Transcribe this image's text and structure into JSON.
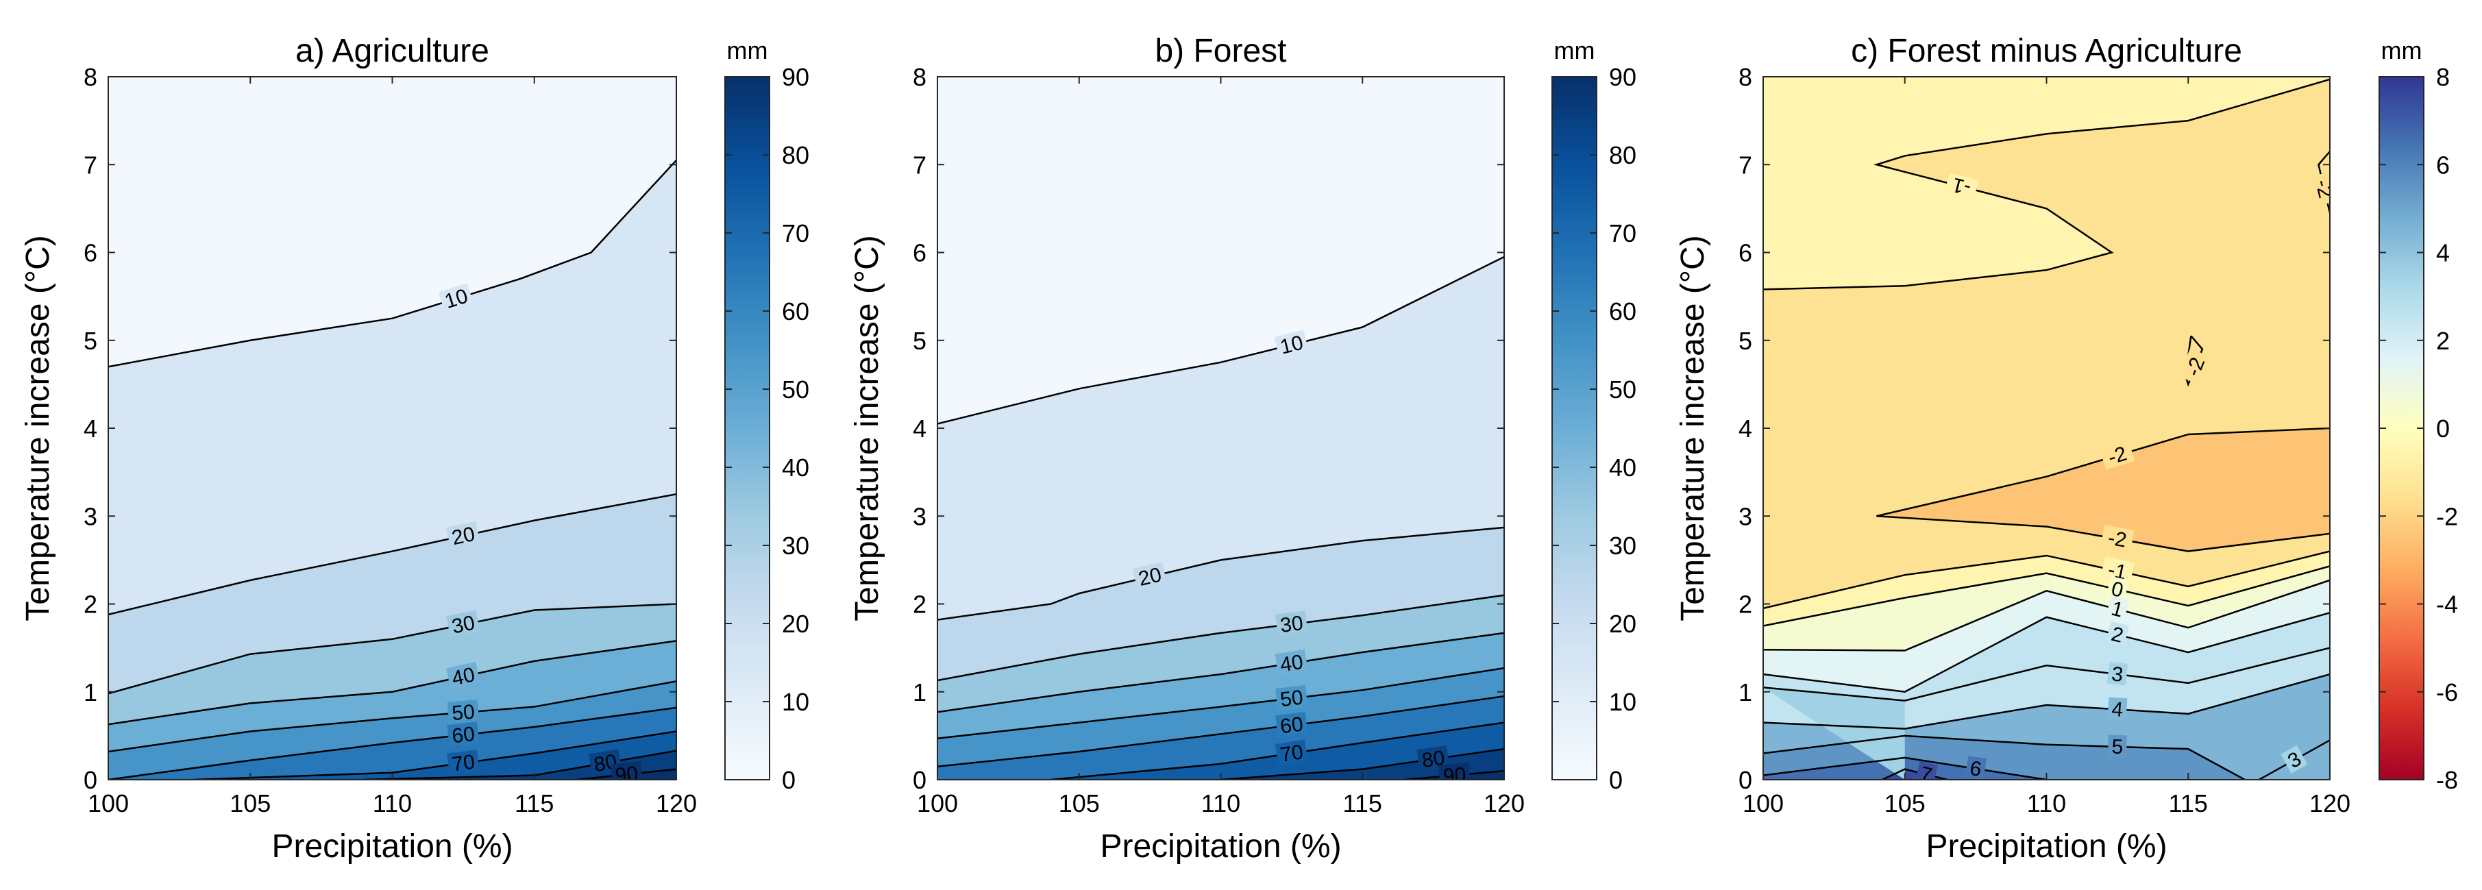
{
  "chart_data": [
    {
      "type": "contour",
      "panel": "a",
      "title": "a) Agriculture",
      "xlabel": "Precipitation (%)",
      "ylabel": "Temperature increase (°C)",
      "xlim": [
        100,
        120
      ],
      "ylim": [
        0,
        8
      ],
      "xticks": [
        100,
        105,
        110,
        115,
        120
      ],
      "yticks": [
        0,
        1,
        2,
        3,
        4,
        5,
        6,
        7,
        8
      ],
      "colormap": "Blues",
      "colorbar": {
        "label": "mm",
        "min": 0,
        "max": 90,
        "ticks": [
          0,
          10,
          20,
          30,
          40,
          50,
          60,
          70,
          80,
          90
        ]
      },
      "contours": [
        {
          "level": 10,
          "label": "10",
          "points": [
            [
              100,
              4.7
            ],
            [
              105,
              5.0
            ],
            [
              110,
              5.25
            ],
            [
              114.5,
              5.7
            ],
            [
              117,
              6.0
            ],
            [
              120,
              7.05
            ]
          ]
        },
        {
          "level": 20,
          "label": "20",
          "points": [
            [
              100,
              1.88
            ],
            [
              105,
              2.27
            ],
            [
              110,
              2.6
            ],
            [
              115,
              2.95
            ],
            [
              120,
              3.25
            ]
          ]
        },
        {
          "level": 30,
          "label": "30",
          "points": [
            [
              100,
              0.98
            ],
            [
              105,
              1.43
            ],
            [
              110,
              1.6
            ],
            [
              115,
              1.93
            ],
            [
              120,
              2.0
            ]
          ]
        },
        {
          "level": 40,
          "label": "40",
          "points": [
            [
              100,
              0.63
            ],
            [
              105,
              0.87
            ],
            [
              110,
              1.0
            ],
            [
              115,
              1.35
            ],
            [
              120,
              1.58
            ]
          ]
        },
        {
          "level": 50,
          "label": "50",
          "points": [
            [
              100,
              0.32
            ],
            [
              105,
              0.55
            ],
            [
              110,
              0.7
            ],
            [
              115,
              0.83
            ],
            [
              120,
              1.12
            ]
          ]
        },
        {
          "level": 60,
          "label": "60",
          "points": [
            [
              100,
              0.0
            ],
            [
              105,
              0.22
            ],
            [
              110,
              0.42
            ],
            [
              115,
              0.6
            ],
            [
              120,
              0.82
            ]
          ]
        },
        {
          "level": 70,
          "label": "70",
          "points": [
            [
              103,
              0.0
            ],
            [
              110,
              0.08
            ],
            [
              115,
              0.3
            ],
            [
              120,
              0.55
            ]
          ]
        },
        {
          "level": 80,
          "label": "80",
          "points": [
            [
              109,
              0.0
            ],
            [
              115,
              0.05
            ],
            [
              120,
              0.33
            ]
          ]
        },
        {
          "level": 90,
          "label": "90",
          "points": [
            [
              116.5,
              0.0
            ],
            [
              120,
              0.12
            ]
          ]
        }
      ]
    },
    {
      "type": "contour",
      "panel": "b",
      "title": "b) Forest",
      "xlabel": "Precipitation (%)",
      "ylabel": "Temperature increase (°C)",
      "xlim": [
        100,
        120
      ],
      "ylim": [
        0,
        8
      ],
      "xticks": [
        100,
        105,
        110,
        115,
        120
      ],
      "yticks": [
        0,
        1,
        2,
        3,
        4,
        5,
        6,
        7,
        8
      ],
      "colormap": "Blues",
      "colorbar": {
        "label": "mm",
        "min": 0,
        "max": 90,
        "ticks": [
          0,
          10,
          20,
          30,
          40,
          50,
          60,
          70,
          80,
          90
        ]
      },
      "contours": [
        {
          "level": 10,
          "label": "10",
          "points": [
            [
              100,
              4.05
            ],
            [
              105,
              4.45
            ],
            [
              110,
              4.75
            ],
            [
              115,
              5.15
            ],
            [
              120,
              5.95
            ]
          ]
        },
        {
          "level": 20,
          "label": "20",
          "points": [
            [
              100,
              1.82
            ],
            [
              104,
              2.0
            ],
            [
              105,
              2.12
            ],
            [
              110,
              2.5
            ],
            [
              115,
              2.72
            ],
            [
              120,
              2.87
            ]
          ]
        },
        {
          "level": 30,
          "label": "30",
          "points": [
            [
              100,
              1.13
            ],
            [
              105,
              1.43
            ],
            [
              110,
              1.67
            ],
            [
              115,
              1.87
            ],
            [
              120,
              2.1
            ]
          ]
        },
        {
          "level": 40,
          "label": "40",
          "points": [
            [
              100,
              0.77
            ],
            [
              105,
              1.0
            ],
            [
              110,
              1.2
            ],
            [
              115,
              1.45
            ],
            [
              120,
              1.67
            ]
          ]
        },
        {
          "level": 50,
          "label": "50",
          "points": [
            [
              100,
              0.47
            ],
            [
              105,
              0.65
            ],
            [
              110,
              0.83
            ],
            [
              115,
              1.02
            ],
            [
              120,
              1.27
            ]
          ]
        },
        {
          "level": 60,
          "label": "60",
          "points": [
            [
              100,
              0.15
            ],
            [
              105,
              0.32
            ],
            [
              110,
              0.52
            ],
            [
              115,
              0.72
            ],
            [
              120,
              0.95
            ]
          ]
        },
        {
          "level": 70,
          "label": "70",
          "points": [
            [
              104,
              0.0
            ],
            [
              110,
              0.18
            ],
            [
              115,
              0.42
            ],
            [
              120,
              0.65
            ]
          ]
        },
        {
          "level": 80,
          "label": "80",
          "points": [
            [
              110,
              0.0
            ],
            [
              115,
              0.12
            ],
            [
              120,
              0.35
            ]
          ]
        },
        {
          "level": 90,
          "label": "90",
          "points": [
            [
              116.5,
              0.0
            ],
            [
              120,
              0.1
            ]
          ]
        }
      ]
    },
    {
      "type": "contour",
      "panel": "c",
      "title": "c) Forest minus Agriculture",
      "xlabel": "Precipitation (%)",
      "ylabel": "Temperature increase (°C)",
      "xlim": [
        100,
        120
      ],
      "ylim": [
        0,
        8
      ],
      "xticks": [
        100,
        105,
        110,
        115,
        120
      ],
      "yticks": [
        0,
        1,
        2,
        3,
        4,
        5,
        6,
        7,
        8
      ],
      "colormap": "RdYlBu",
      "colorbar": {
        "label": "mm",
        "min": -8,
        "max": 8,
        "ticks": [
          -8,
          -6,
          -4,
          -2,
          0,
          2,
          4,
          6,
          8
        ]
      },
      "contours": [
        {
          "level": -1,
          "label": "-1",
          "points": [
            [
              100,
              5.58
            ],
            [
              105,
              5.62
            ],
            [
              110,
              5.8
            ],
            [
              112.3,
              6.0
            ],
            [
              110,
              6.5
            ],
            [
              104,
              7.0
            ],
            [
              105,
              7.1
            ],
            [
              110,
              7.35
            ],
            [
              115,
              7.5
            ],
            [
              120,
              7.97
            ]
          ]
        },
        {
          "level": -2,
          "label": "-2",
          "points": [
            [
              104,
              3.0
            ],
            [
              110,
              3.45
            ],
            [
              115,
              3.93
            ],
            [
              120,
              4.0
            ]
          ]
        },
        {
          "level": -2,
          "label": "-2",
          "points": [
            [
              104,
              3.0
            ],
            [
              110,
              2.88
            ],
            [
              115,
              2.6
            ],
            [
              120,
              2.8
            ]
          ]
        },
        {
          "level": -2,
          "label": "-2",
          "points": [
            [
              115.1,
              5.05
            ],
            [
              114.9,
              4.6
            ],
            [
              115,
              4.5
            ],
            [
              115.5,
              4.9
            ],
            [
              115.1,
              5.05
            ]
          ]
        },
        {
          "level": -2,
          "label": "-2",
          "points": [
            [
              120,
              7.15
            ],
            [
              119.6,
              7.0
            ],
            [
              120,
              6.45
            ]
          ]
        },
        {
          "level": -1,
          "label": "-1",
          "points": [
            [
              100,
              1.95
            ],
            [
              105,
              2.33
            ],
            [
              110,
              2.55
            ],
            [
              115,
              2.2
            ],
            [
              120,
              2.6
            ]
          ]
        },
        {
          "level": 0,
          "label": "0",
          "points": [
            [
              100,
              1.75
            ],
            [
              105,
              2.07
            ],
            [
              110,
              2.35
            ],
            [
              115,
              1.98
            ],
            [
              120,
              2.43
            ]
          ]
        },
        {
          "level": 1,
          "label": "1",
          "points": [
            [
              100,
              1.48
            ],
            [
              105,
              1.47
            ],
            [
              110,
              2.15
            ],
            [
              115,
              1.73
            ],
            [
              120,
              2.27
            ]
          ]
        },
        {
          "level": 2,
          "label": "2",
          "points": [
            [
              100,
              1.2
            ],
            [
              105,
              1.0
            ],
            [
              110,
              1.85
            ],
            [
              115,
              1.45
            ],
            [
              120,
              1.9
            ]
          ]
        },
        {
          "level": 3,
          "label": "3",
          "points": [
            [
              100,
              1.05
            ],
            [
              105,
              0.9
            ],
            [
              110,
              1.3
            ],
            [
              115,
              1.1
            ],
            [
              120,
              1.5
            ]
          ]
        },
        {
          "level": 3,
          "label": "3",
          "points": [
            [
              117.5,
              0.0
            ],
            [
              120,
              0.45
            ]
          ]
        },
        {
          "level": 4,
          "label": "4",
          "points": [
            [
              100,
              0.65
            ],
            [
              105,
              0.58
            ],
            [
              110,
              0.85
            ],
            [
              115,
              0.75
            ],
            [
              120,
              1.2
            ]
          ]
        },
        {
          "level": 5,
          "label": "5",
          "points": [
            [
              100,
              0.3
            ],
            [
              105,
              0.5
            ],
            [
              110,
              0.4
            ],
            [
              115,
              0.35
            ],
            [
              117,
              0.0
            ]
          ]
        },
        {
          "level": 6,
          "label": "6",
          "points": [
            [
              100,
              0.05
            ],
            [
              105,
              0.25
            ],
            [
              110,
              0.0
            ]
          ]
        },
        {
          "level": 7,
          "label": "7",
          "points": [
            [
              104.2,
              0.0
            ],
            [
              105,
              0.12
            ],
            [
              106.5,
              0.0
            ]
          ]
        }
      ]
    }
  ]
}
